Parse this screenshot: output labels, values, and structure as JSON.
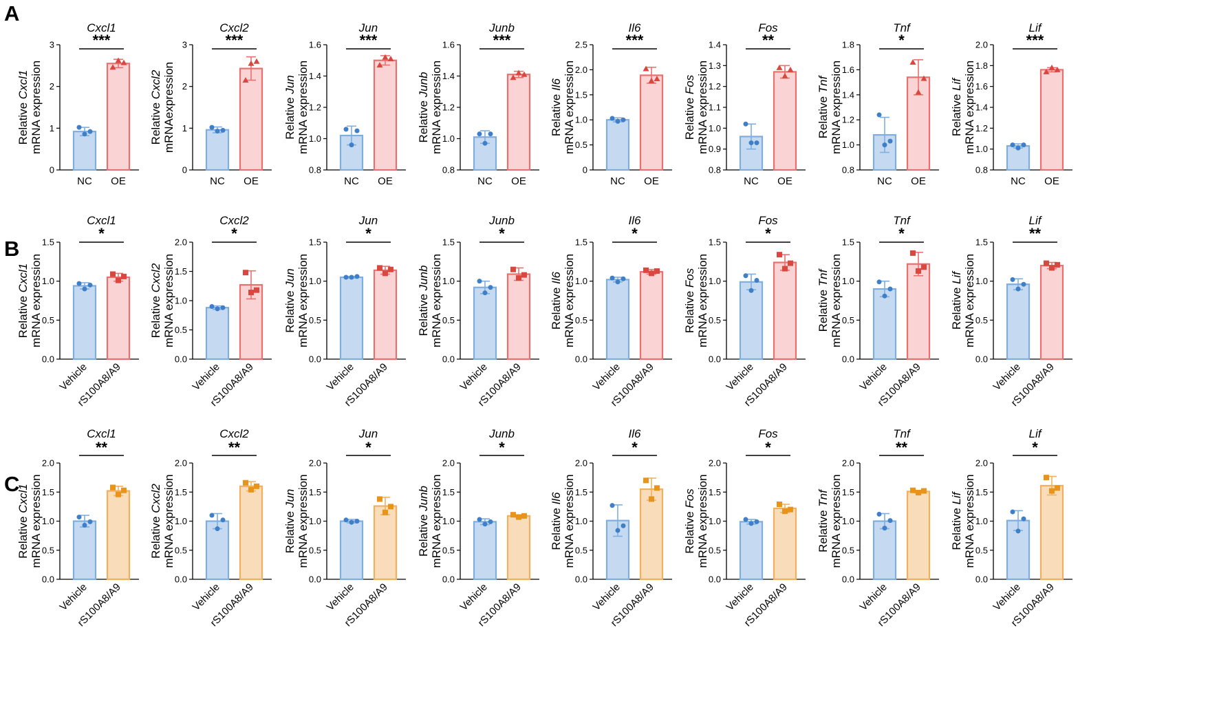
{
  "colors": {
    "nc_fill": "#c5daf1",
    "nc_stroke": "#7eaee0",
    "nc_point": "#3f7fc8",
    "oe_fill": "#fad4d4",
    "oe_stroke": "#e9706f",
    "oe_point": "#d9473f",
    "orange_fill": "#f9dcba",
    "orange_stroke": "#f2b05e",
    "orange_point": "#e8941b",
    "axis": "#000000"
  },
  "panel_labels": [
    "A",
    "B",
    "C"
  ],
  "y_label_prefix": "Relative",
  "y_label_suffix": "mRNA expression",
  "y_label_suffix_alt": "mRNAexpression",
  "chart_data": [
    {
      "type": "bar",
      "panel": "A",
      "title": "Cxcl1",
      "categories": [
        "NC",
        "OE"
      ],
      "ylim": [
        0,
        3
      ],
      "yticks": [
        "0",
        "1",
        "2",
        "3"
      ],
      "tickvals": [
        0,
        1,
        2,
        3
      ],
      "values": [
        0.92,
        2.55
      ],
      "err": [
        0.1,
        0.1
      ],
      "points": [
        [
          1.02,
          0.86,
          0.92
        ],
        [
          2.46,
          2.62,
          2.57
        ]
      ],
      "sig": "***",
      "marker": "triangle",
      "scheme": "red"
    },
    {
      "type": "bar",
      "panel": "A",
      "title": "Cxcl2",
      "categories": [
        "NC",
        "OE"
      ],
      "ylim": [
        0,
        3
      ],
      "yticks": [
        "0",
        "1",
        "2",
        "3"
      ],
      "tickvals": [
        0,
        1,
        2,
        3
      ],
      "values": [
        0.96,
        2.43
      ],
      "err": [
        0.07,
        0.28
      ],
      "points": [
        [
          1.02,
          0.93,
          0.95
        ],
        [
          2.15,
          2.55,
          2.6
        ]
      ],
      "sig": "***",
      "marker": "triangle",
      "scheme": "red",
      "altlabel": true
    },
    {
      "type": "bar",
      "panel": "A",
      "title": "Jun",
      "categories": [
        "NC",
        "OE"
      ],
      "ylim": [
        0.8,
        1.6
      ],
      "yticks": [
        "0.8",
        "1.0",
        "1.2",
        "1.4",
        "1.6"
      ],
      "tickvals": [
        0.8,
        1.0,
        1.2,
        1.4,
        1.6
      ],
      "values": [
        1.02,
        1.5
      ],
      "err": [
        0.06,
        0.03
      ],
      "points": [
        [
          1.06,
          0.96,
          1.05
        ],
        [
          1.47,
          1.52,
          1.51
        ]
      ],
      "sig": "***",
      "marker": "triangle",
      "scheme": "red"
    },
    {
      "type": "bar",
      "panel": "A",
      "title": "Junb",
      "categories": [
        "NC",
        "OE"
      ],
      "ylim": [
        0.8,
        1.6
      ],
      "yticks": [
        "0.8",
        "1.0",
        "1.2",
        "1.4",
        "1.6"
      ],
      "tickvals": [
        0.8,
        1.0,
        1.2,
        1.4,
        1.6
      ],
      "values": [
        1.01,
        1.41
      ],
      "err": [
        0.04,
        0.02
      ],
      "points": [
        [
          1.03,
          0.97,
          1.03
        ],
        [
          1.39,
          1.42,
          1.41
        ]
      ],
      "sig": "***",
      "marker": "triangle",
      "scheme": "red"
    },
    {
      "type": "bar",
      "panel": "A",
      "title": "Il6",
      "categories": [
        "NC",
        "OE"
      ],
      "ylim": [
        0,
        2.5
      ],
      "yticks": [
        "0",
        "0.5",
        "1.0",
        "1.5",
        "2.0",
        "2.5"
      ],
      "tickvals": [
        0,
        0.5,
        1.0,
        1.5,
        2.0,
        2.5
      ],
      "values": [
        1.0,
        1.89
      ],
      "err": [
        0.04,
        0.16
      ],
      "points": [
        [
          1.03,
          0.97,
          1.0
        ],
        [
          2.02,
          1.78,
          1.82
        ]
      ],
      "sig": "***",
      "marker": "triangle",
      "scheme": "red"
    },
    {
      "type": "bar",
      "panel": "A",
      "title": "Fos",
      "categories": [
        "NC",
        "OE"
      ],
      "ylim": [
        0.8,
        1.4
      ],
      "yticks": [
        "0.8",
        "0.9",
        "1.0",
        "1.1",
        "1.2",
        "1.3",
        "1.4"
      ],
      "tickvals": [
        0.8,
        0.9,
        1.0,
        1.1,
        1.2,
        1.3,
        1.4
      ],
      "values": [
        0.96,
        1.27
      ],
      "err": [
        0.06,
        0.03
      ],
      "points": [
        [
          1.02,
          0.93,
          0.93
        ],
        [
          1.29,
          1.25,
          1.28
        ]
      ],
      "sig": "**",
      "marker": "triangle",
      "scheme": "red"
    },
    {
      "type": "bar",
      "panel": "A",
      "title": "Tnf",
      "categories": [
        "NC",
        "OE"
      ],
      "ylim": [
        0.8,
        1.8
      ],
      "yticks": [
        "0.8",
        "1.0",
        "1.2",
        "1.4",
        "1.6",
        "1.8"
      ],
      "tickvals": [
        0.8,
        1.0,
        1.2,
        1.4,
        1.6,
        1.8
      ],
      "values": [
        1.08,
        1.54
      ],
      "err": [
        0.14,
        0.14
      ],
      "points": [
        [
          1.24,
          1.0,
          1.03
        ],
        [
          1.66,
          1.42,
          1.53
        ]
      ],
      "sig": "*",
      "marker": "triangle",
      "scheme": "red"
    },
    {
      "type": "bar",
      "panel": "A",
      "title": "Lif",
      "categories": [
        "NC",
        "OE"
      ],
      "ylim": [
        0.8,
        2.0
      ],
      "yticks": [
        "0.8",
        "1.0",
        "1.2",
        "1.4",
        "1.6",
        "1.8",
        "2.0"
      ],
      "tickvals": [
        0.8,
        1.0,
        1.2,
        1.4,
        1.6,
        1.8,
        2.0
      ],
      "values": [
        1.03,
        1.76
      ],
      "err": [
        0.02,
        0.02
      ],
      "points": [
        [
          1.04,
          1.01,
          1.04
        ],
        [
          1.74,
          1.78,
          1.76
        ]
      ],
      "sig": "***",
      "marker": "triangle",
      "scheme": "red"
    },
    {
      "type": "bar",
      "panel": "B",
      "title": "Cxcl1",
      "categories": [
        "Vehicle",
        "rS100A8/A9"
      ],
      "ylim": [
        0,
        1.5
      ],
      "yticks": [
        "0.0",
        "0.5",
        "1.0",
        "1.5"
      ],
      "tickvals": [
        0,
        0.5,
        1.0,
        1.5
      ],
      "values": [
        0.94,
        1.05
      ],
      "err": [
        0.04,
        0.05
      ],
      "points": [
        [
          0.97,
          0.9,
          0.95
        ],
        [
          1.09,
          1.01,
          1.06
        ]
      ],
      "sig": "*",
      "marker": "square",
      "scheme": "red"
    },
    {
      "type": "bar",
      "panel": "B",
      "title": "Cxcl2",
      "categories": [
        "Vehicle",
        "rS100A8/A9"
      ],
      "ylim": [
        0,
        2.0
      ],
      "yticks": [
        "0.0",
        "0.5",
        "1.0",
        "1.5",
        "2.0"
      ],
      "tickvals": [
        0,
        0.5,
        1.0,
        1.5,
        2.0
      ],
      "values": [
        0.88,
        1.27
      ],
      "err": [
        0.03,
        0.24
      ],
      "points": [
        [
          0.9,
          0.86,
          0.88
        ],
        [
          1.48,
          1.14,
          1.18
        ]
      ],
      "sig": "*",
      "marker": "square",
      "scheme": "red"
    },
    {
      "type": "bar",
      "panel": "B",
      "title": "Jun",
      "categories": [
        "Vehicle",
        "rS100A8/A9"
      ],
      "ylim": [
        0,
        1.5
      ],
      "yticks": [
        "0.0",
        "0.5",
        "1.0",
        "1.5"
      ],
      "tickvals": [
        0,
        0.5,
        1.0,
        1.5
      ],
      "values": [
        1.05,
        1.14
      ],
      "err": [
        0.01,
        0.05
      ],
      "points": [
        [
          1.05,
          1.05,
          1.06
        ],
        [
          1.17,
          1.1,
          1.15
        ]
      ],
      "sig": "*",
      "marker": "square",
      "scheme": "red"
    },
    {
      "type": "bar",
      "panel": "B",
      "title": "Junb",
      "categories": [
        "Vehicle",
        "rS100A8/A9"
      ],
      "ylim": [
        0,
        1.5
      ],
      "yticks": [
        "0.0",
        "0.5",
        "1.0",
        "1.5"
      ],
      "tickvals": [
        0,
        0.5,
        1.0,
        1.5
      ],
      "values": [
        0.92,
        1.09
      ],
      "err": [
        0.08,
        0.08
      ],
      "points": [
        [
          1.0,
          0.85,
          0.92
        ],
        [
          1.15,
          1.04,
          1.08
        ]
      ],
      "sig": "*",
      "marker": "square",
      "scheme": "red"
    },
    {
      "type": "bar",
      "panel": "B",
      "title": "Il6",
      "categories": [
        "Vehicle",
        "rS100A8/A9"
      ],
      "ylim": [
        0,
        1.5
      ],
      "yticks": [
        "0.0",
        "0.5",
        "1.0",
        "1.5"
      ],
      "tickvals": [
        0,
        0.5,
        1.0,
        1.5
      ],
      "values": [
        1.02,
        1.12
      ],
      "err": [
        0.03,
        0.03
      ],
      "points": [
        [
          1.04,
          0.99,
          1.03
        ],
        [
          1.14,
          1.1,
          1.13
        ]
      ],
      "sig": "*",
      "marker": "square",
      "scheme": "red"
    },
    {
      "type": "bar",
      "panel": "B",
      "title": "Fos",
      "categories": [
        "Vehicle",
        "rS100A8/A9"
      ],
      "ylim": [
        0,
        1.5
      ],
      "yticks": [
        "0.0",
        "0.5",
        "1.0",
        "1.5"
      ],
      "tickvals": [
        0,
        0.5,
        1.0,
        1.5
      ],
      "values": [
        0.99,
        1.24
      ],
      "err": [
        0.1,
        0.1
      ],
      "points": [
        [
          1.07,
          0.88,
          1.01
        ],
        [
          1.34,
          1.16,
          1.23
        ]
      ],
      "sig": "*",
      "marker": "square",
      "scheme": "red"
    },
    {
      "type": "bar",
      "panel": "B",
      "title": "Tnf",
      "categories": [
        "Vehicle",
        "rS100A8/A9"
      ],
      "ylim": [
        0,
        1.5
      ],
      "yticks": [
        "0.0",
        "0.5",
        "1.0",
        "1.5"
      ],
      "tickvals": [
        0,
        0.5,
        1.0,
        1.5
      ],
      "values": [
        0.9,
        1.22
      ],
      "err": [
        0.1,
        0.15
      ],
      "points": [
        [
          0.99,
          0.81,
          0.9
        ],
        [
          1.36,
          1.13,
          1.18
        ]
      ],
      "sig": "*",
      "marker": "square",
      "scheme": "red"
    },
    {
      "type": "bar",
      "panel": "B",
      "title": "Lif",
      "categories": [
        "Vehicle",
        "rS100A8/A9"
      ],
      "ylim": [
        0,
        1.5
      ],
      "yticks": [
        "0.0",
        "0.5",
        "1.0",
        "1.5"
      ],
      "tickvals": [
        0,
        0.5,
        1.0,
        1.5
      ],
      "values": [
        0.96,
        1.2
      ],
      "err": [
        0.07,
        0.04
      ],
      "points": [
        [
          1.02,
          0.9,
          0.96
        ],
        [
          1.23,
          1.17,
          1.21
        ]
      ],
      "sig": "**",
      "marker": "square",
      "scheme": "red"
    },
    {
      "type": "bar",
      "panel": "C",
      "title": "Cxcl1",
      "categories": [
        "Vehicle",
        "rS100A8/A9"
      ],
      "ylim": [
        0,
        2.0
      ],
      "yticks": [
        "0.0",
        "0.5",
        "1.0",
        "1.5",
        "2.0"
      ],
      "tickvals": [
        0,
        0.5,
        1.0,
        1.5,
        2.0
      ],
      "values": [
        1.0,
        1.52
      ],
      "err": [
        0.1,
        0.08
      ],
      "points": [
        [
          1.07,
          0.93,
          0.99
        ],
        [
          1.58,
          1.46,
          1.53
        ]
      ],
      "sig": "**",
      "marker": "square",
      "scheme": "orange"
    },
    {
      "type": "bar",
      "panel": "C",
      "title": "Cxcl2",
      "categories": [
        "Vehicle",
        "rS100A8/A9"
      ],
      "ylim": [
        0,
        2.0
      ],
      "yticks": [
        "0.0",
        "0.5",
        "1.0",
        "1.5",
        "2.0"
      ],
      "tickvals": [
        0,
        0.5,
        1.0,
        1.5,
        2.0
      ],
      "values": [
        1.0,
        1.6
      ],
      "err": [
        0.13,
        0.08
      ],
      "points": [
        [
          1.1,
          0.87,
          1.02
        ],
        [
          1.66,
          1.54,
          1.6
        ]
      ],
      "sig": "**",
      "marker": "square",
      "scheme": "orange"
    },
    {
      "type": "bar",
      "panel": "C",
      "title": "Jun",
      "categories": [
        "Vehicle",
        "rS100A8/A9"
      ],
      "ylim": [
        0,
        2.0
      ],
      "yticks": [
        "0.0",
        "0.5",
        "1.0",
        "1.5",
        "2.0"
      ],
      "tickvals": [
        0,
        0.5,
        1.0,
        1.5,
        2.0
      ],
      "values": [
        1.0,
        1.26
      ],
      "err": [
        0.03,
        0.15
      ],
      "points": [
        [
          1.02,
          0.98,
          1.0
        ],
        [
          1.38,
          1.15,
          1.25
        ]
      ],
      "sig": "*",
      "marker": "square",
      "scheme": "orange"
    },
    {
      "type": "bar",
      "panel": "C",
      "title": "Junb",
      "categories": [
        "Vehicle",
        "rS100A8/A9"
      ],
      "ylim": [
        0,
        2.0
      ],
      "yticks": [
        "0.0",
        "0.5",
        "1.0",
        "1.5",
        "2.0"
      ],
      "tickvals": [
        0,
        0.5,
        1.0,
        1.5,
        2.0
      ],
      "values": [
        0.99,
        1.09
      ],
      "err": [
        0.05,
        0.02
      ],
      "points": [
        [
          1.03,
          0.95,
          0.99
        ],
        [
          1.11,
          1.07,
          1.09
        ]
      ],
      "sig": "*",
      "marker": "square",
      "scheme": "orange"
    },
    {
      "type": "bar",
      "panel": "C",
      "title": "Il6",
      "categories": [
        "Vehicle",
        "rS100A8/A9"
      ],
      "ylim": [
        0,
        2.0
      ],
      "yticks": [
        "0.0",
        "0.5",
        "1.0",
        "1.5",
        "2.0"
      ],
      "tickvals": [
        0,
        0.5,
        1.0,
        1.5,
        2.0
      ],
      "values": [
        1.01,
        1.55
      ],
      "err": [
        0.27,
        0.19
      ],
      "points": [
        [
          1.27,
          0.84,
          0.92
        ],
        [
          1.7,
          1.38,
          1.57
        ]
      ],
      "sig": "*",
      "marker": "square",
      "scheme": "orange"
    },
    {
      "type": "bar",
      "panel": "C",
      "title": "Fos",
      "categories": [
        "Vehicle",
        "rS100A8/A9"
      ],
      "ylim": [
        0,
        2.0
      ],
      "yticks": [
        "0.0",
        "0.5",
        "1.0",
        "1.5",
        "2.0"
      ],
      "tickvals": [
        0,
        0.5,
        1.0,
        1.5,
        2.0
      ],
      "values": [
        0.99,
        1.22
      ],
      "err": [
        0.04,
        0.07
      ],
      "points": [
        [
          1.03,
          0.96,
          0.99
        ],
        [
          1.29,
          1.17,
          1.2
        ]
      ],
      "sig": "*",
      "marker": "square",
      "scheme": "orange"
    },
    {
      "type": "bar",
      "panel": "C",
      "title": "Tnf",
      "categories": [
        "Vehicle",
        "rS100A8/A9"
      ],
      "ylim": [
        0,
        2.0
      ],
      "yticks": [
        "0.0",
        "0.5",
        "1.0",
        "1.5",
        "2.0"
      ],
      "tickvals": [
        0,
        0.5,
        1.0,
        1.5,
        2.0
      ],
      "values": [
        1.0,
        1.51
      ],
      "err": [
        0.13,
        0.02
      ],
      "points": [
        [
          1.12,
          0.88,
          1.01
        ],
        [
          1.53,
          1.49,
          1.52
        ]
      ],
      "sig": "**",
      "marker": "square",
      "scheme": "orange"
    },
    {
      "type": "bar",
      "panel": "C",
      "title": "Lif",
      "categories": [
        "Vehicle",
        "rS100A8/A9"
      ],
      "ylim": [
        0,
        2.0
      ],
      "yticks": [
        "0.0",
        "0.5",
        "1.0",
        "1.5",
        "2.0"
      ],
      "tickvals": [
        0,
        0.5,
        1.0,
        1.5,
        2.0
      ],
      "values": [
        1.01,
        1.61
      ],
      "err": [
        0.17,
        0.16
      ],
      "points": [
        [
          1.16,
          0.83,
          1.04
        ],
        [
          1.75,
          1.52,
          1.57
        ]
      ],
      "sig": "*",
      "marker": "square",
      "scheme": "orange"
    }
  ]
}
